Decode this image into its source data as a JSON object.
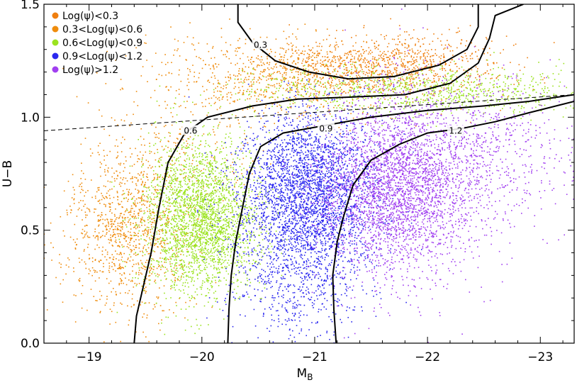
{
  "chart_data": {
    "type": "scatter",
    "xlabel": "M",
    "xlabel_sub": "B",
    "ylabel": "U−B",
    "xlim": [
      -18.6,
      -23.3
    ],
    "ylim": [
      0.0,
      1.5
    ],
    "x_ticks": [
      -19,
      -20,
      -21,
      -22,
      -23
    ],
    "x_tick_labels": [
      "−19",
      "−20",
      "−21",
      "−22",
      "−23"
    ],
    "y_ticks": [
      0.0,
      0.5,
      1.0,
      1.5
    ],
    "y_tick_labels": [
      "0.0",
      "0.5",
      "1.0",
      "1.5"
    ],
    "grid": false,
    "legend_position": "top-left",
    "series": [
      {
        "name": "Log(ψ)<0.3",
        "color": "#ef7f0f",
        "clusters": [
          {
            "x_center": -21.7,
            "y_center": 1.23,
            "x_spread": 0.5,
            "y_spread": 0.07,
            "count": 900
          }
        ]
      },
      {
        "name": "0.3<Log(ψ)<0.6",
        "color": "#ef8c0c",
        "clusters": [
          {
            "x_center": -19.35,
            "y_center": 0.5,
            "x_spread": 0.28,
            "y_spread": 0.17,
            "count": 1100
          },
          {
            "x_center": -20.7,
            "y_center": 1.18,
            "x_spread": 0.6,
            "y_spread": 0.09,
            "count": 900
          },
          {
            "x_center": -19.9,
            "y_center": 0.8,
            "x_spread": 0.3,
            "y_spread": 0.12,
            "count": 200
          }
        ]
      },
      {
        "name": "0.6<Log(ψ)<0.9",
        "color": "#9be31f",
        "clusters": [
          {
            "x_center": -20.0,
            "y_center": 0.55,
            "x_spread": 0.25,
            "y_spread": 0.17,
            "count": 2600
          },
          {
            "x_center": -22.0,
            "y_center": 1.12,
            "x_spread": 0.8,
            "y_spread": 0.05,
            "count": 900
          }
        ]
      },
      {
        "name": "0.9<Log(ψ)<1.2",
        "color": "#2a27ef",
        "clusters": [
          {
            "x_center": -20.95,
            "y_center": 0.65,
            "x_spread": 0.3,
            "y_spread": 0.18,
            "count": 3200
          },
          {
            "x_center": -20.8,
            "y_center": 0.25,
            "x_spread": 0.3,
            "y_spread": 0.12,
            "count": 400
          }
        ]
      },
      {
        "name": "Log(ψ)>1.2",
        "color": "#a13ff0",
        "clusters": [
          {
            "x_center": -21.75,
            "y_center": 0.7,
            "x_spread": 0.35,
            "y_spread": 0.2,
            "count": 3200
          },
          {
            "x_center": -22.6,
            "y_center": 0.85,
            "x_spread": 0.35,
            "y_spread": 0.15,
            "count": 500
          }
        ]
      }
    ],
    "dashed_line": {
      "x": [
        -18.6,
        -23.3
      ],
      "y": [
        0.94,
        1.1
      ]
    },
    "contours": [
      {
        "label": "0.3",
        "label_x": -20.52,
        "label_y": 1.32,
        "points": [
          [
            -20.32,
            1.5
          ],
          [
            -20.32,
            1.42
          ],
          [
            -20.45,
            1.33
          ],
          [
            -20.65,
            1.25
          ],
          [
            -20.95,
            1.2
          ],
          [
            -21.3,
            1.17
          ],
          [
            -21.7,
            1.18
          ],
          [
            -22.1,
            1.23
          ],
          [
            -22.35,
            1.3
          ],
          [
            -22.45,
            1.4
          ],
          [
            -22.45,
            1.5
          ]
        ]
      },
      {
        "label": "0.6",
        "label_x": -19.9,
        "label_y": 0.94,
        "points": [
          [
            -19.4,
            0.0
          ],
          [
            -19.42,
            0.12
          ],
          [
            -19.48,
            0.25
          ],
          [
            -19.55,
            0.4
          ],
          [
            -19.62,
            0.6
          ],
          [
            -19.7,
            0.8
          ],
          [
            -19.85,
            0.93
          ],
          [
            -20.05,
            1.0
          ],
          [
            -20.45,
            1.05
          ],
          [
            -20.85,
            1.08
          ],
          [
            -21.35,
            1.09
          ],
          [
            -21.8,
            1.1
          ],
          [
            -22.2,
            1.15
          ],
          [
            -22.45,
            1.24
          ],
          [
            -22.55,
            1.35
          ],
          [
            -22.6,
            1.45
          ],
          [
            -22.85,
            1.5
          ]
        ]
      },
      {
        "label": "0.9",
        "label_x": -21.1,
        "label_y": 0.95,
        "points": [
          [
            -20.23,
            0.0
          ],
          [
            -20.24,
            0.15
          ],
          [
            -20.26,
            0.3
          ],
          [
            -20.3,
            0.45
          ],
          [
            -20.36,
            0.6
          ],
          [
            -20.42,
            0.75
          ],
          [
            -20.52,
            0.87
          ],
          [
            -20.72,
            0.93
          ],
          [
            -21.05,
            0.96
          ],
          [
            -21.5,
            1.0
          ],
          [
            -22.0,
            1.03
          ],
          [
            -22.5,
            1.05
          ],
          [
            -22.9,
            1.07
          ],
          [
            -23.3,
            1.1
          ]
        ]
      },
      {
        "label": "1.2",
        "label_x": -22.25,
        "label_y": 0.94,
        "points": [
          [
            -21.19,
            0.0
          ],
          [
            -21.17,
            0.15
          ],
          [
            -21.16,
            0.3
          ],
          [
            -21.2,
            0.45
          ],
          [
            -21.25,
            0.55
          ],
          [
            -21.34,
            0.7
          ],
          [
            -21.5,
            0.81
          ],
          [
            -21.75,
            0.88
          ],
          [
            -22.0,
            0.93
          ],
          [
            -22.3,
            0.95
          ],
          [
            -22.6,
            0.98
          ],
          [
            -22.9,
            1.02
          ],
          [
            -23.3,
            1.07
          ]
        ]
      }
    ]
  }
}
